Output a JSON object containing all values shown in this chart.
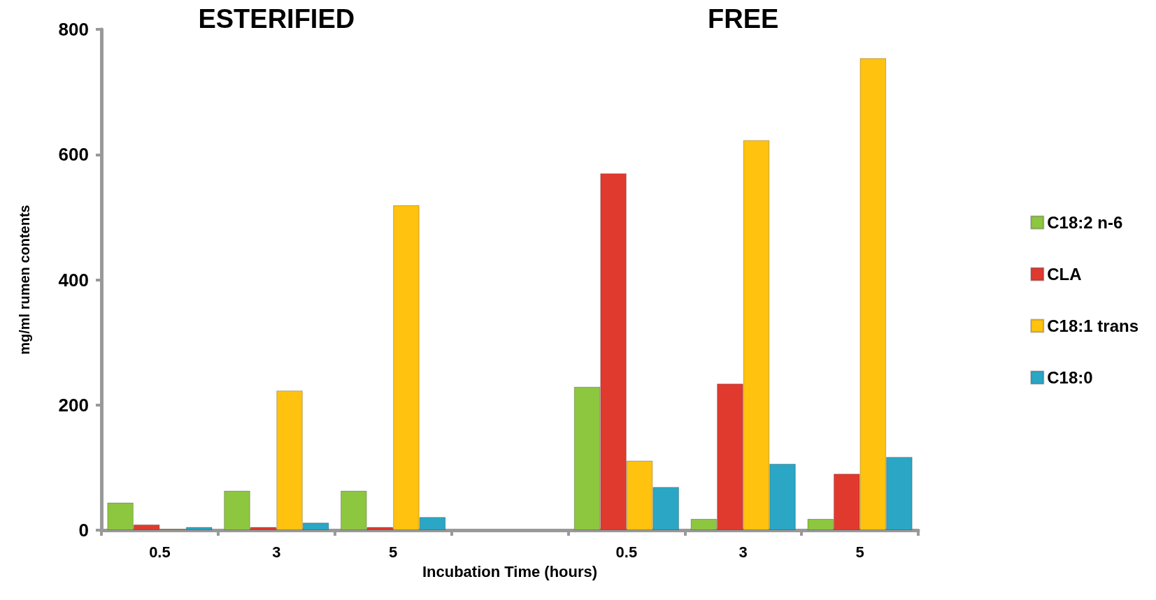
{
  "chart_data": {
    "type": "bar",
    "xlabel": "Incubation Time (hours)",
    "ylabel": "mg/ml rumen contents",
    "annotations": [
      "ESTERIFIED",
      "FREE"
    ],
    "categories": [
      "0.5",
      "3",
      "5",
      null,
      "0.5",
      "3",
      "5"
    ],
    "series": [
      {
        "name": "C18:2 n-6",
        "color": "#8dc63f",
        "values": [
          44,
          63,
          63,
          null,
          229,
          18,
          18
        ]
      },
      {
        "name": "CLA",
        "color": "#e03a2f",
        "values": [
          9,
          5,
          5,
          null,
          570,
          234,
          90
        ]
      },
      {
        "name": "C18:1 trans",
        "color": "#ffc20e",
        "values": [
          2,
          223,
          519,
          null,
          111,
          623,
          754
        ]
      },
      {
        "name": "C18:0",
        "color": "#2ba6c4",
        "values": [
          5,
          12,
          21,
          null,
          69,
          106,
          117
        ]
      }
    ],
    "ylim": [
      0,
      800
    ],
    "yticks": [
      0,
      200,
      400,
      600,
      800
    ],
    "grid": false,
    "legend": "right"
  }
}
